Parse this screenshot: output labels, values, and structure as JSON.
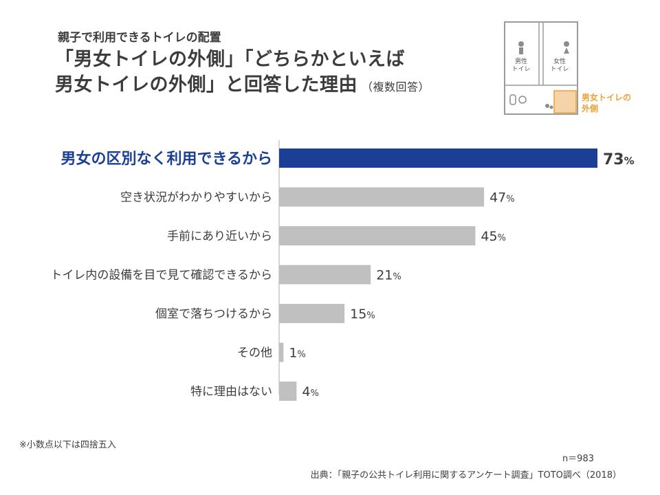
{
  "header": {
    "subtitle": "親子で利用できるトイレの配置",
    "title_line1": "「男女トイレの外側」「どちらかといえば",
    "title_line2": "男女トイレの外側」と回答した理由",
    "title_note": "（複数回答）"
  },
  "floorplan": {
    "male_label": [
      "男性",
      "トイレ"
    ],
    "female_label": [
      "女性",
      "トイレ"
    ],
    "highlight_label": [
      "男女トイレの",
      "外側"
    ],
    "highlight_color": "#f0a030"
  },
  "chart_data": {
    "type": "bar",
    "orientation": "horizontal",
    "categories": [
      "男女の区別なく利用できるから",
      "空き状況がわかりやすいから",
      "手前にあり近いから",
      "トイレ内の設備を目で見て確認できるから",
      "個室で落ちつけるから",
      "その他",
      "特に理由はない"
    ],
    "values": [
      73,
      47,
      45,
      21,
      15,
      1,
      4
    ],
    "unit": "%",
    "highlight_index": 0,
    "highlight_color": "#1a3f95",
    "bar_color": "#c0c0c0",
    "xlim": [
      0,
      73
    ]
  },
  "footer": {
    "footnote": "※小数点以下は四捨五入",
    "n": "n＝983",
    "source": "出典：「親子の公共トイレ利用に関するアンケート調査」TOTO調べ（2018）"
  }
}
